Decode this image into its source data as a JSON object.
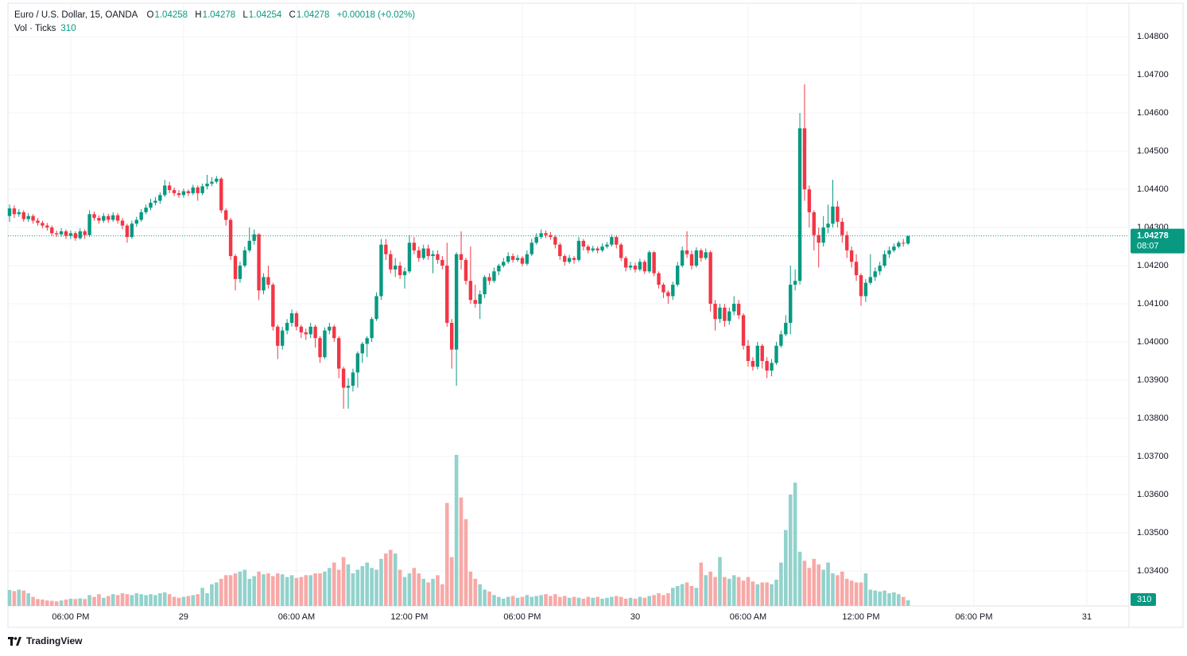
{
  "chart_data": {
    "type": "candlestick",
    "title": "Euro / U.S. Dollar, 15, OANDA",
    "legend_labels": {
      "open": "O",
      "high": "H",
      "low": "L",
      "close": "C"
    },
    "change": "+0.00018 (+0.02%)",
    "volume_title": "Vol · Ticks",
    "countdown": "08:07",
    "brand": "TradingView",
    "up_color": "#089981",
    "down_color": "#f23645",
    "volume_up_color": "#92d2cc",
    "volume_down_color": "#f7a9a7",
    "grid": true,
    "ylim": [
      1.03308,
      1.04888
    ],
    "yticks": [
      {
        "value": 1.048,
        "label": "1.04800"
      },
      {
        "value": 1.047,
        "label": "1.04700"
      },
      {
        "value": 1.046,
        "label": "1.04600"
      },
      {
        "value": 1.045,
        "label": "1.04500"
      },
      {
        "value": 1.044,
        "label": "1.04400"
      },
      {
        "value": 1.043,
        "label": "1.04300"
      },
      {
        "value": 1.042,
        "label": "1.04200"
      },
      {
        "value": 1.041,
        "label": "1.04100"
      },
      {
        "value": 1.04,
        "label": "1.04000"
      },
      {
        "value": 1.039,
        "label": "1.03900"
      },
      {
        "value": 1.038,
        "label": "1.03800"
      },
      {
        "value": 1.037,
        "label": "1.03700"
      },
      {
        "value": 1.036,
        "label": "1.03600"
      },
      {
        "value": 1.035,
        "label": "1.03500"
      },
      {
        "value": 1.034,
        "label": "1.03400"
      }
    ],
    "xticks": [
      "06:00 PM",
      "29",
      "06:00 AM",
      "12:00 PM",
      "06:00 PM",
      "30",
      "06:00 AM",
      "12:00 PM",
      "06:00 PM",
      "31"
    ],
    "candles": [
      [
        1.0433,
        1.0436,
        1.04315,
        1.0435
      ],
      [
        1.0435,
        1.04358,
        1.04325,
        1.04335
      ],
      [
        1.04335,
        1.04348,
        1.04328,
        1.0434
      ],
      [
        1.0434,
        1.04345,
        1.04315,
        1.04322
      ],
      [
        1.04322,
        1.04338,
        1.04315,
        1.0433
      ],
      [
        1.0433,
        1.04335,
        1.0431,
        1.04318
      ],
      [
        1.04318,
        1.04325,
        1.04305,
        1.04312
      ],
      [
        1.04312,
        1.04318,
        1.04298,
        1.04305
      ],
      [
        1.04305,
        1.04312,
        1.04292,
        1.043
      ],
      [
        1.043,
        1.04305,
        1.04278,
        1.04285
      ],
      [
        1.04285,
        1.04292,
        1.04275,
        1.04282
      ],
      [
        1.04282,
        1.04298,
        1.04276,
        1.0429
      ],
      [
        1.0429,
        1.04295,
        1.0427,
        1.04278
      ],
      [
        1.04278,
        1.04292,
        1.0427,
        1.04285
      ],
      [
        1.04285,
        1.0429,
        1.04265,
        1.04272
      ],
      [
        1.04272,
        1.04298,
        1.04268,
        1.0429
      ],
      [
        1.0429,
        1.04295,
        1.0427,
        1.0428
      ],
      [
        1.0428,
        1.04345,
        1.04275,
        1.04335
      ],
      [
        1.04335,
        1.04342,
        1.04318,
        1.04325
      ],
      [
        1.04325,
        1.04332,
        1.0431,
        1.04318
      ],
      [
        1.04318,
        1.04338,
        1.04312,
        1.0433
      ],
      [
        1.0433,
        1.04336,
        1.04312,
        1.0432
      ],
      [
        1.0432,
        1.0434,
        1.04315,
        1.04332
      ],
      [
        1.04332,
        1.04338,
        1.0431,
        1.04318
      ],
      [
        1.04318,
        1.04325,
        1.04295,
        1.04305
      ],
      [
        1.04305,
        1.0431,
        1.0426,
        1.04275
      ],
      [
        1.04275,
        1.04318,
        1.0427,
        1.0431
      ],
      [
        1.0431,
        1.04328,
        1.04302,
        1.0432
      ],
      [
        1.0432,
        1.04348,
        1.04315,
        1.0434
      ],
      [
        1.0434,
        1.0436,
        1.04335,
        1.04352
      ],
      [
        1.04352,
        1.04375,
        1.04345,
        1.04365
      ],
      [
        1.04365,
        1.0438,
        1.04358,
        1.0437
      ],
      [
        1.0437,
        1.04392,
        1.04362,
        1.04385
      ],
      [
        1.04385,
        1.04425,
        1.0438,
        1.0441
      ],
      [
        1.0441,
        1.0442,
        1.0439,
        1.04398
      ],
      [
        1.04398,
        1.04405,
        1.04382,
        1.0439
      ],
      [
        1.0439,
        1.04398,
        1.04378,
        1.04385
      ],
      [
        1.04385,
        1.04402,
        1.04378,
        1.04395
      ],
      [
        1.04395,
        1.044,
        1.04382,
        1.0439
      ],
      [
        1.0439,
        1.04412,
        1.04385,
        1.04405
      ],
      [
        1.04405,
        1.0441,
        1.0437,
        1.0439
      ],
      [
        1.0439,
        1.04415,
        1.04385,
        1.04408
      ],
      [
        1.04408,
        1.04438,
        1.044,
        1.04415
      ],
      [
        1.04415,
        1.04432,
        1.04408,
        1.0442
      ],
      [
        1.0442,
        1.04435,
        1.04415,
        1.04428
      ],
      [
        1.04428,
        1.04432,
        1.04338,
        1.04345
      ],
      [
        1.04345,
        1.0435,
        1.04305,
        1.0432
      ],
      [
        1.0432,
        1.04325,
        1.04215,
        1.04225
      ],
      [
        1.04225,
        1.0423,
        1.04135,
        1.04165
      ],
      [
        1.04165,
        1.0421,
        1.04155,
        1.042
      ],
      [
        1.042,
        1.0425,
        1.04195,
        1.0424
      ],
      [
        1.0424,
        1.043,
        1.04235,
        1.04265
      ],
      [
        1.04265,
        1.04295,
        1.04255,
        1.04282
      ],
      [
        1.04282,
        1.04285,
        1.0411,
        1.04135
      ],
      [
        1.04135,
        1.0418,
        1.04125,
        1.0417
      ],
      [
        1.0417,
        1.042,
        1.0414,
        1.0415
      ],
      [
        1.0415,
        1.04155,
        1.0403,
        1.0404
      ],
      [
        1.0404,
        1.04045,
        1.03955,
        1.0399
      ],
      [
        1.0399,
        1.0404,
        1.0398,
        1.0403
      ],
      [
        1.0403,
        1.0406,
        1.0402,
        1.0405
      ],
      [
        1.0405,
        1.04085,
        1.0404,
        1.04075
      ],
      [
        1.04075,
        1.0408,
        1.0403,
        1.0404
      ],
      [
        1.0404,
        1.04045,
        1.0401,
        1.04025
      ],
      [
        1.04025,
        1.04035,
        1.04005,
        1.0402
      ],
      [
        1.0402,
        1.0405,
        1.0401,
        1.0404
      ],
      [
        1.0404,
        1.04045,
        1.03985,
        1.0401
      ],
      [
        1.0401,
        1.04015,
        1.03945,
        1.0396
      ],
      [
        1.0396,
        1.04038,
        1.03955,
        1.0403
      ],
      [
        1.0403,
        1.0405,
        1.0402,
        1.0404
      ],
      [
        1.0404,
        1.04045,
        1.04,
        1.0401
      ],
      [
        1.0401,
        1.04015,
        1.03905,
        1.0393
      ],
      [
        1.0393,
        1.03935,
        1.03825,
        1.0388
      ],
      [
        1.0388,
        1.03905,
        1.03825,
        1.03885
      ],
      [
        1.03885,
        1.0393,
        1.0387,
        1.0392
      ],
      [
        1.0392,
        1.03975,
        1.0388,
        1.0397
      ],
      [
        1.0397,
        1.04,
        1.03945,
        1.03995
      ],
      [
        1.03995,
        1.04015,
        1.0396,
        1.0401
      ],
      [
        1.0401,
        1.04065,
        1.04,
        1.0406
      ],
      [
        1.0406,
        1.0413,
        1.04055,
        1.0412
      ],
      [
        1.0412,
        1.0427,
        1.0411,
        1.04255
      ],
      [
        1.04255,
        1.0427,
        1.04215,
        1.0423
      ],
      [
        1.0423,
        1.0424,
        1.0418,
        1.0419
      ],
      [
        1.0419,
        1.0422,
        1.0417,
        1.042
      ],
      [
        1.042,
        1.0421,
        1.04165,
        1.04175
      ],
      [
        1.04175,
        1.04195,
        1.0414,
        1.04185
      ],
      [
        1.04185,
        1.0428,
        1.0418,
        1.0426
      ],
      [
        1.0426,
        1.04275,
        1.0423,
        1.0424
      ],
      [
        1.0424,
        1.0425,
        1.0421,
        1.0422
      ],
      [
        1.0422,
        1.04255,
        1.04215,
        1.04245
      ],
      [
        1.04245,
        1.04255,
        1.04215,
        1.04225
      ],
      [
        1.04225,
        1.0424,
        1.0418,
        1.0423
      ],
      [
        1.0423,
        1.0424,
        1.04205,
        1.04215
      ],
      [
        1.04215,
        1.04225,
        1.0419,
        1.042
      ],
      [
        1.042,
        1.0426,
        1.0404,
        1.0405
      ],
      [
        1.0405,
        1.0406,
        1.0393,
        1.0398
      ],
      [
        1.0398,
        1.04235,
        1.03885,
        1.0423
      ],
      [
        1.0423,
        1.0429,
        1.0419,
        1.04215
      ],
      [
        1.04215,
        1.0422,
        1.0415,
        1.0416
      ],
      [
        1.0416,
        1.0425,
        1.041,
        1.0411
      ],
      [
        1.0411,
        1.0415,
        1.0409,
        1.041
      ],
      [
        1.041,
        1.04135,
        1.0406,
        1.04125
      ],
      [
        1.04125,
        1.04175,
        1.04115,
        1.0417
      ],
      [
        1.0417,
        1.0418,
        1.0415,
        1.0416
      ],
      [
        1.0416,
        1.04195,
        1.04155,
        1.04185
      ],
      [
        1.04185,
        1.04205,
        1.04175,
        1.042
      ],
      [
        1.042,
        1.0422,
        1.04195,
        1.0421
      ],
      [
        1.0421,
        1.04235,
        1.04205,
        1.04225
      ],
      [
        1.04225,
        1.04232,
        1.04208,
        1.04215
      ],
      [
        1.04215,
        1.04228,
        1.0421,
        1.0422
      ],
      [
        1.0422,
        1.04225,
        1.04198,
        1.04205
      ],
      [
        1.04205,
        1.0424,
        1.042,
        1.0423
      ],
      [
        1.0423,
        1.0427,
        1.04225,
        1.0426
      ],
      [
        1.0426,
        1.04285,
        1.04255,
        1.04275
      ],
      [
        1.04275,
        1.04295,
        1.0427,
        1.04285
      ],
      [
        1.04285,
        1.04292,
        1.04272,
        1.0428
      ],
      [
        1.0428,
        1.04288,
        1.04268,
        1.04275
      ],
      [
        1.04275,
        1.0428,
        1.04245,
        1.04255
      ],
      [
        1.04255,
        1.0426,
        1.04215,
        1.04225
      ],
      [
        1.04225,
        1.0423,
        1.042,
        1.0421
      ],
      [
        1.0421,
        1.04228,
        1.04205,
        1.0422
      ],
      [
        1.0422,
        1.04225,
        1.04205,
        1.04215
      ],
      [
        1.04215,
        1.04275,
        1.0421,
        1.04265
      ],
      [
        1.04265,
        1.0427,
        1.0424,
        1.0425
      ],
      [
        1.0425,
        1.04255,
        1.04232,
        1.0424
      ],
      [
        1.0424,
        1.04252,
        1.04235,
        1.04245
      ],
      [
        1.04245,
        1.0425,
        1.04232,
        1.0424
      ],
      [
        1.0424,
        1.04258,
        1.04235,
        1.0425
      ],
      [
        1.0425,
        1.04262,
        1.04245,
        1.04255
      ],
      [
        1.04255,
        1.04282,
        1.0425,
        1.04275
      ],
      [
        1.04275,
        1.0428,
        1.04245,
        1.04255
      ],
      [
        1.04255,
        1.0426,
        1.04212,
        1.0422
      ],
      [
        1.0422,
        1.04225,
        1.04185,
        1.04195
      ],
      [
        1.04195,
        1.0421,
        1.04188,
        1.042
      ],
      [
        1.042,
        1.04208,
        1.04182,
        1.0419
      ],
      [
        1.0419,
        1.04218,
        1.04185,
        1.0421
      ],
      [
        1.0421,
        1.04215,
        1.04178,
        1.04185
      ],
      [
        1.04185,
        1.0424,
        1.0418,
        1.04235
      ],
      [
        1.04235,
        1.04238,
        1.04172,
        1.0418
      ],
      [
        1.0418,
        1.04185,
        1.0414,
        1.0415
      ],
      [
        1.0415,
        1.04155,
        1.04115,
        1.0413
      ],
      [
        1.0413,
        1.04135,
        1.041,
        1.0412
      ],
      [
        1.0412,
        1.04158,
        1.0411,
        1.0415
      ],
      [
        1.0415,
        1.0421,
        1.04145,
        1.042
      ],
      [
        1.042,
        1.0425,
        1.04195,
        1.0424
      ],
      [
        1.0424,
        1.0429,
        1.0422,
        1.0423
      ],
      [
        1.0423,
        1.0424,
        1.0419,
        1.042
      ],
      [
        1.042,
        1.04248,
        1.04195,
        1.0424
      ],
      [
        1.0424,
        1.04245,
        1.0421,
        1.0422
      ],
      [
        1.0422,
        1.04245,
        1.04215,
        1.04235
      ],
      [
        1.04235,
        1.0424,
        1.0408,
        1.041
      ],
      [
        1.041,
        1.0411,
        1.0403,
        1.0406
      ],
      [
        1.0406,
        1.041,
        1.0405,
        1.0409
      ],
      [
        1.0409,
        1.041,
        1.0404,
        1.04055
      ],
      [
        1.04055,
        1.0409,
        1.04045,
        1.0408
      ],
      [
        1.0408,
        1.0412,
        1.0407,
        1.041
      ],
      [
        1.041,
        1.0411,
        1.0406,
        1.0407
      ],
      [
        1.0407,
        1.04075,
        1.0398,
        1.0399
      ],
      [
        1.0399,
        1.04005,
        1.03935,
        1.0395
      ],
      [
        1.0395,
        1.0396,
        1.03925,
        1.03935
      ],
      [
        1.03935,
        1.04,
        1.03928,
        1.0399
      ],
      [
        1.0399,
        1.03995,
        1.0393,
        1.0395
      ],
      [
        1.0395,
        1.0396,
        1.03905,
        1.03925
      ],
      [
        1.03925,
        1.03955,
        1.0391,
        1.03945
      ],
      [
        1.03945,
        1.04,
        1.0394,
        1.0399
      ],
      [
        1.0399,
        1.0403,
        1.03985,
        1.0402
      ],
      [
        1.0402,
        1.0407,
        1.04015,
        1.0405
      ],
      [
        1.0405,
        1.042,
        1.0402,
        1.0415
      ],
      [
        1.0415,
        1.0419,
        1.04135,
        1.0416
      ],
      [
        1.0416,
        1.046,
        1.0415,
        1.0456
      ],
      [
        1.0456,
        1.04675,
        1.0437,
        1.044
      ],
      [
        1.044,
        1.0441,
        1.043,
        1.0434
      ],
      [
        1.0434,
        1.04345,
        1.0424,
        1.0428
      ],
      [
        1.0428,
        1.043,
        1.04195,
        1.0426
      ],
      [
        1.0426,
        1.0433,
        1.0425,
        1.043
      ],
      [
        1.043,
        1.0436,
        1.04285,
        1.0431
      ],
      [
        1.0431,
        1.04425,
        1.043,
        1.04355
      ],
      [
        1.04355,
        1.0437,
        1.043,
        1.04315
      ],
      [
        1.04315,
        1.04325,
        1.0426,
        1.0428
      ],
      [
        1.0428,
        1.0429,
        1.0422,
        1.0424
      ],
      [
        1.0424,
        1.0425,
        1.04195,
        1.0421
      ],
      [
        1.0421,
        1.0423,
        1.0416,
        1.04175
      ],
      [
        1.04175,
        1.0418,
        1.04095,
        1.0412
      ],
      [
        1.0412,
        1.04165,
        1.04105,
        1.04155
      ],
      [
        1.04155,
        1.0423,
        1.0415,
        1.0417
      ],
      [
        1.0417,
        1.04195,
        1.0416,
        1.04185
      ],
      [
        1.04185,
        1.0421,
        1.04175,
        1.042
      ],
      [
        1.042,
        1.0424,
        1.04195,
        1.0423
      ],
      [
        1.0423,
        1.0425,
        1.0422,
        1.0424
      ],
      [
        1.0424,
        1.04258,
        1.04235,
        1.0425
      ],
      [
        1.0425,
        1.04265,
        1.04245,
        1.0426
      ],
      [
        1.0426,
        1.0427,
        1.0425,
        1.04258
      ],
      [
        1.04258,
        1.04278,
        1.04254,
        1.04278
      ]
    ],
    "volume": [
      880,
      820,
      900,
      850,
      700,
      500,
      380,
      350,
      300,
      280,
      250,
      300,
      350,
      400,
      380,
      420,
      380,
      600,
      500,
      650,
      450,
      550,
      650,
      600,
      700,
      650,
      600,
      700,
      650,
      600,
      650,
      600,
      700,
      750,
      650,
      500,
      450,
      500,
      550,
      600,
      650,
      1000,
      700,
      1200,
      1300,
      1500,
      1700,
      1700,
      1800,
      1900,
      2000,
      1500,
      1650,
      1900,
      1750,
      1800,
      1650,
      1800,
      1750,
      1600,
      1700,
      1550,
      1600,
      1700,
      1700,
      1800,
      1800,
      1900,
      2100,
      2400,
      2000,
      2700,
      2300,
      1800,
      2000,
      2200,
      2400,
      2100,
      2000,
      2600,
      2900,
      3100,
      2900,
      2000,
      1600,
      1800,
      2100,
      1800,
      1500,
      1300,
      1500,
      1700,
      1200,
      5700,
      2700,
      8360,
      6000,
      4800,
      1900,
      1500,
      1200,
      900,
      800,
      600,
      500,
      400,
      500,
      550,
      450,
      500,
      600,
      500,
      550,
      600,
      650,
      550,
      650,
      500,
      550,
      450,
      500,
      450,
      400,
      500,
      450,
      500,
      400,
      450,
      500,
      550,
      500,
      400,
      450,
      400,
      500,
      450,
      550,
      600,
      700,
      600,
      700,
      1000,
      1100,
      1200,
      1300,
      1100,
      1000,
      2400,
      1700,
      1900,
      1600,
      2700,
      1600,
      1500,
      1700,
      1600,
      1400,
      1600,
      1350,
      1200,
      1300,
      1300,
      1200,
      1450,
      2400,
      4200,
      6160,
      6820,
      3000,
      2500,
      2100,
      2600,
      2300,
      2000,
      2400,
      1800,
      1700,
      1900,
      1500,
      1400,
      1300,
      1300,
      1800,
      900,
      850,
      800,
      850,
      700,
      750,
      650,
      500,
      310
    ]
  }
}
